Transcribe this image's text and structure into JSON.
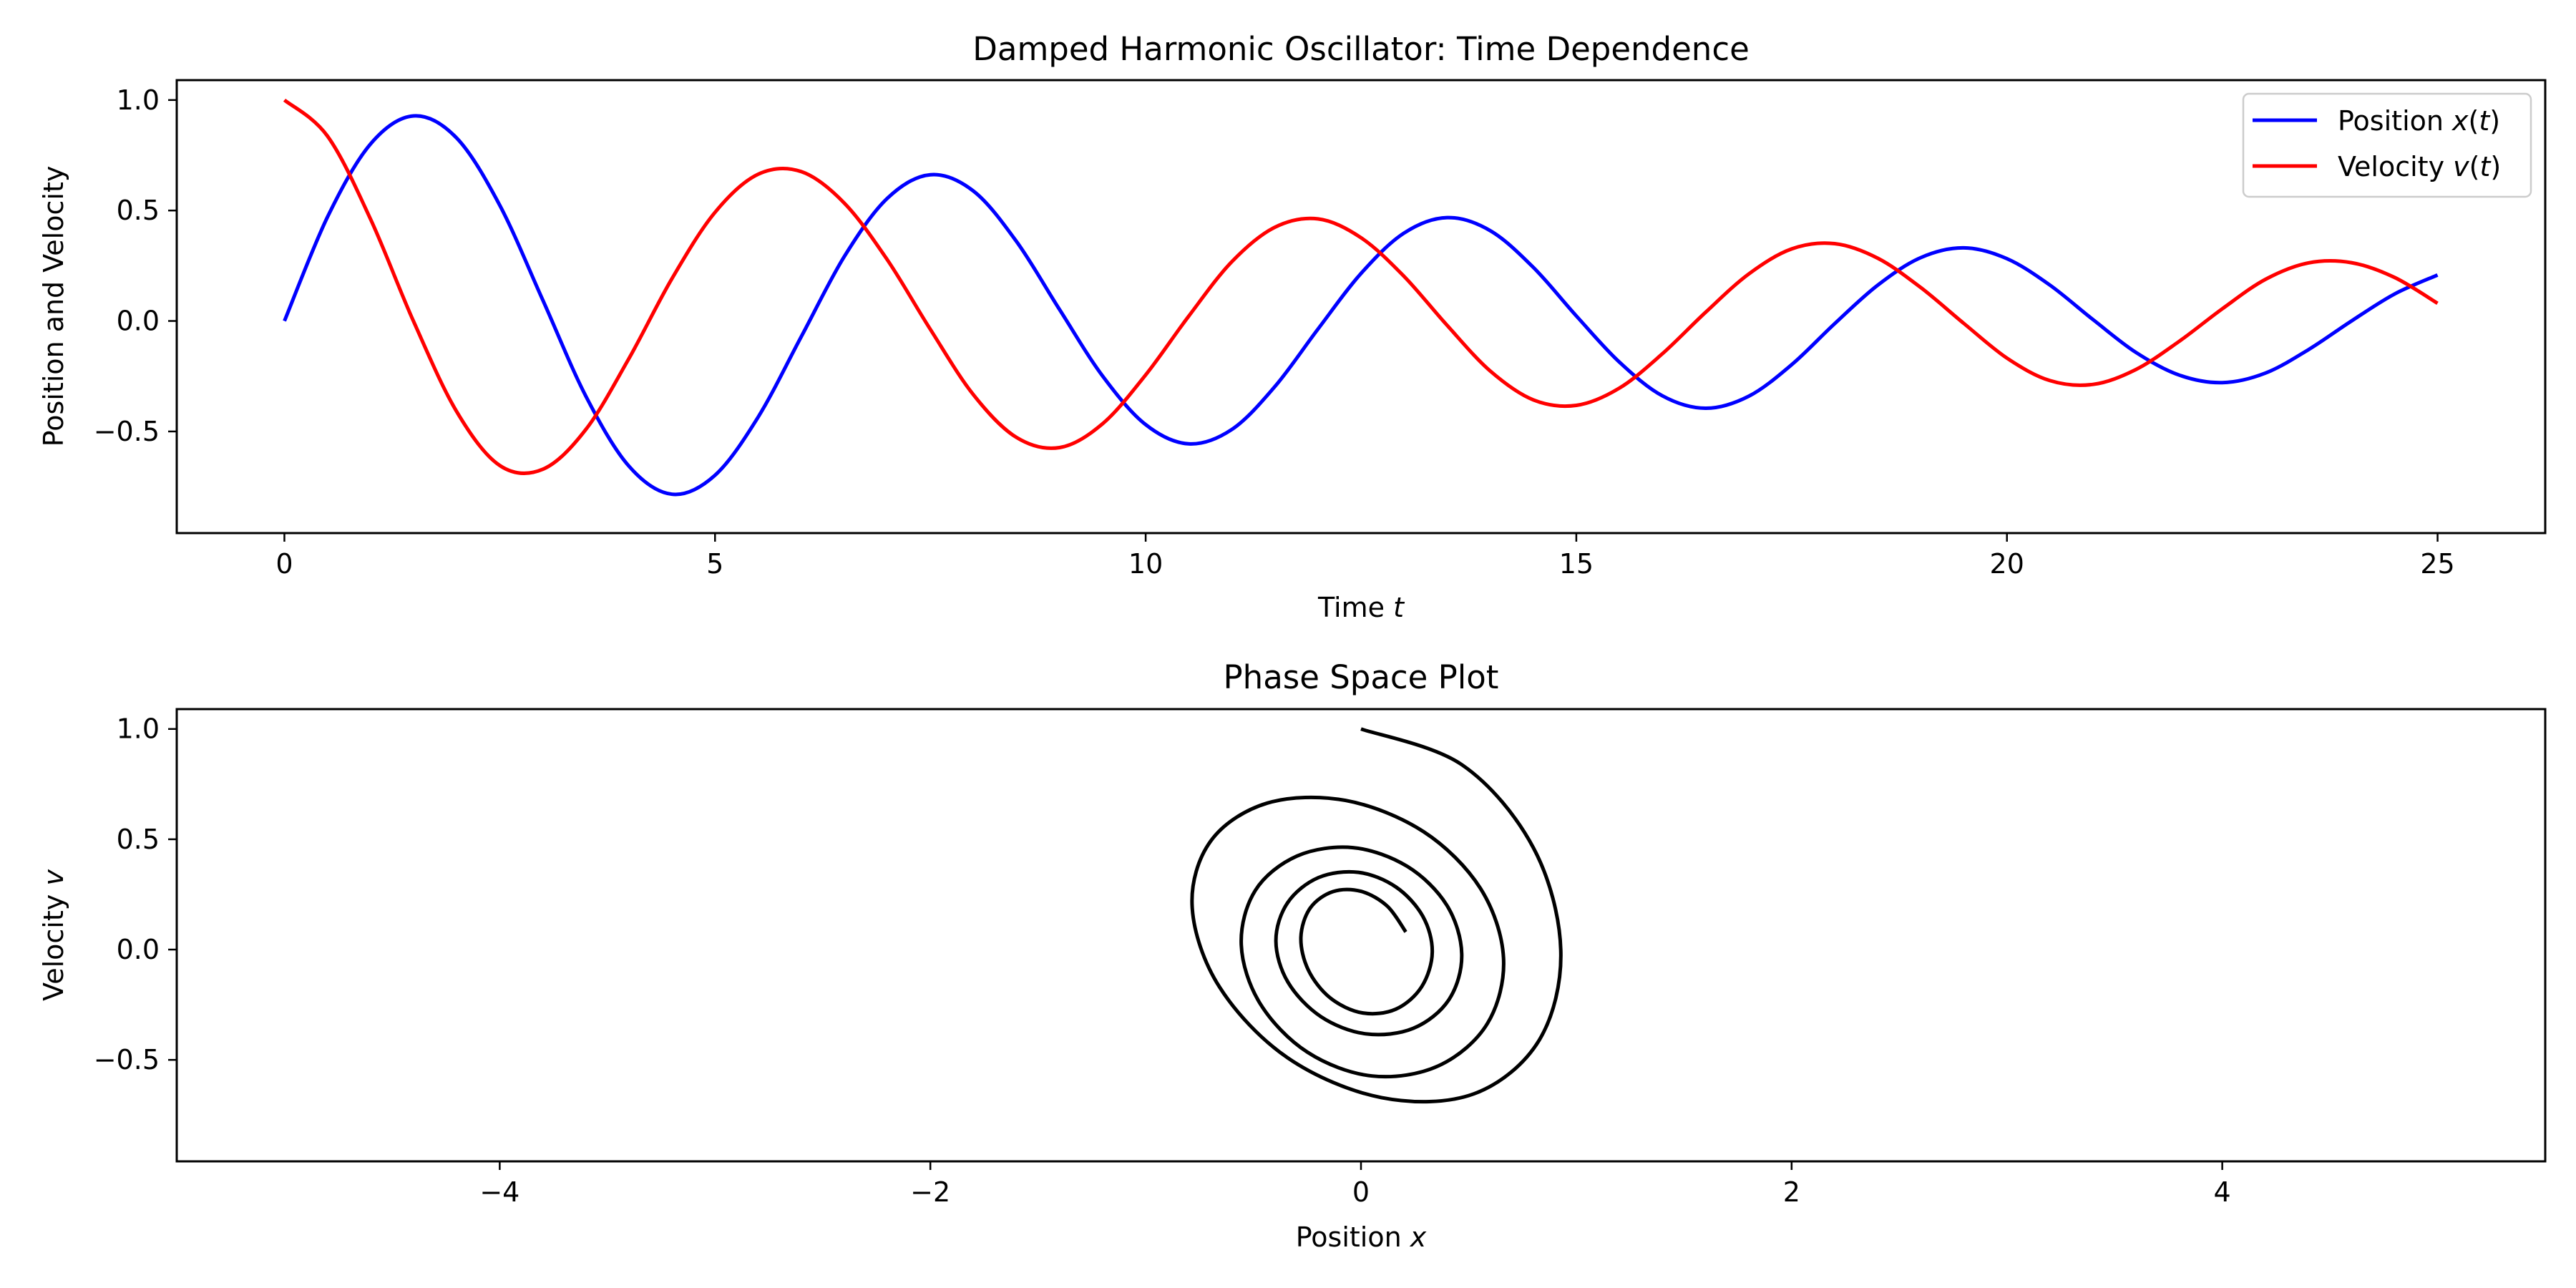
{
  "chart_data": [
    {
      "type": "line",
      "title": "Damped Harmonic Oscillator: Time Dependence",
      "xlabel_parts": [
        "Time ",
        "t",
        ""
      ],
      "ylabel": "Position and Velocity",
      "xlim": [
        -1.25,
        26.25
      ],
      "ylim": [
        -0.96,
        1.09
      ],
      "xticks": [
        0,
        5,
        10,
        15,
        20,
        25
      ],
      "xtick_labels": [
        "0",
        "5",
        "10",
        "15",
        "20",
        "25"
      ],
      "yticks": [
        -0.5,
        0.0,
        0.5,
        1.0
      ],
      "ytick_labels": [
        "−0.5",
        "0.0",
        "0.5",
        "1.0"
      ],
      "legend_position": "top-right",
      "grid": false,
      "series": [
        {
          "name_parts": [
            "Position ",
            "x",
            "(",
            "t",
            ")"
          ],
          "color": "#0000ff",
          "x": [
            0,
            0.5,
            1,
            1.5,
            2,
            2.5,
            3,
            3.5,
            4,
            4.5,
            5,
            5.5,
            6,
            6.5,
            7,
            7.5,
            8,
            8.5,
            9,
            9.5,
            10,
            10.5,
            11,
            11.5,
            12,
            12.5,
            13,
            13.5,
            14,
            14.5,
            15,
            15.5,
            16,
            16.5,
            17,
            17.5,
            18,
            18.5,
            19,
            19.5,
            20,
            20.5,
            21,
            21.5,
            22,
            22.5,
            23,
            23.5,
            24,
            24.5,
            25
          ],
          "y": [
            0.0,
            0.47,
            0.801,
            0.928,
            0.828,
            0.524,
            0.095,
            -0.34,
            -0.657,
            -0.784,
            -0.698,
            -0.435,
            -0.072,
            0.291,
            0.555,
            0.662,
            0.588,
            0.36,
            0.052,
            -0.249,
            -0.469,
            -0.556,
            -0.491,
            -0.297,
            -0.037,
            0.215,
            0.398,
            0.468,
            0.409,
            0.243,
            0.023,
            -0.186,
            -0.339,
            -0.395,
            -0.341,
            -0.198,
            -0.012,
            0.162,
            0.287,
            0.331,
            0.282,
            0.162,
            0.006,
            -0.143,
            -0.245,
            -0.279,
            -0.236,
            -0.13,
            0.0,
            0.122,
            0.208
          ]
        },
        {
          "name_parts": [
            "Velocity ",
            "v",
            "(",
            "t",
            ")"
          ],
          "color": "#ff0000",
          "x": [
            0,
            0.5,
            1,
            1.5,
            2,
            2.5,
            3,
            3.5,
            4,
            4.5,
            5,
            5.5,
            6,
            6.5,
            7,
            7.5,
            8,
            8.5,
            9,
            9.5,
            10,
            10.5,
            11,
            11.5,
            12,
            12.5,
            13,
            13.5,
            14,
            14.5,
            15,
            15.5,
            16,
            16.5,
            17,
            17.5,
            18,
            18.5,
            19,
            19.5,
            20,
            20.5,
            21,
            21.5,
            22,
            22.5,
            23,
            23.5,
            24,
            24.5,
            25
          ],
          "y": [
            1.0,
            0.837,
            0.461,
            -0.002,
            -0.41,
            -0.654,
            -0.671,
            -0.491,
            -0.17,
            0.192,
            0.492,
            0.664,
            0.676,
            0.534,
            0.277,
            -0.038,
            -0.334,
            -0.527,
            -0.573,
            -0.465,
            -0.244,
            0.022,
            0.268,
            0.424,
            0.462,
            0.377,
            0.202,
            -0.02,
            -0.226,
            -0.357,
            -0.382,
            -0.304,
            -0.148,
            0.039,
            0.212,
            0.326,
            0.35,
            0.284,
            0.151,
            -0.011,
            -0.168,
            -0.27,
            -0.287,
            -0.219,
            -0.092,
            0.055,
            0.188,
            0.263,
            0.264,
            0.197,
            0.08
          ]
        }
      ]
    },
    {
      "type": "line",
      "title": "Phase Space Plot",
      "xlabel_parts": [
        "Position ",
        "x",
        ""
      ],
      "ylabel_parts": [
        "Velocity ",
        "v",
        ""
      ],
      "xlim": [
        -5.5,
        5.5
      ],
      "ylim": [
        -0.96,
        1.09
      ],
      "xticks": [
        -4,
        -2,
        0,
        2,
        4
      ],
      "xtick_labels": [
        "−4",
        "−2",
        "0",
        "2",
        "4"
      ],
      "yticks": [
        -0.5,
        0.0,
        0.5,
        1.0
      ],
      "ytick_labels": [
        "−0.5",
        "0.0",
        "0.5",
        "1.0"
      ],
      "grid": false,
      "series": [
        {
          "color": "#000000",
          "x": [
            0.0,
            0.47,
            0.801,
            0.928,
            0.828,
            0.524,
            0.095,
            -0.34,
            -0.657,
            -0.784,
            -0.698,
            -0.435,
            -0.072,
            0.291,
            0.555,
            0.662,
            0.588,
            0.36,
            0.052,
            -0.249,
            -0.469,
            -0.556,
            -0.491,
            -0.297,
            -0.037,
            0.215,
            0.398,
            0.468,
            0.409,
            0.243,
            0.023,
            -0.186,
            -0.339,
            -0.395,
            -0.341,
            -0.198,
            -0.012,
            0.162,
            0.287,
            0.331,
            0.282,
            0.162,
            0.006,
            -0.143,
            -0.245,
            -0.279,
            -0.236,
            -0.13,
            0.0,
            0.122,
            0.208
          ],
          "y": [
            1.0,
            0.837,
            0.461,
            -0.002,
            -0.41,
            -0.654,
            -0.671,
            -0.491,
            -0.17,
            0.192,
            0.492,
            0.664,
            0.676,
            0.534,
            0.277,
            -0.038,
            -0.334,
            -0.527,
            -0.573,
            -0.465,
            -0.244,
            0.022,
            0.268,
            0.424,
            0.462,
            0.377,
            0.202,
            -0.02,
            -0.226,
            -0.357,
            -0.382,
            -0.304,
            -0.148,
            0.039,
            0.212,
            0.326,
            0.35,
            0.284,
            0.151,
            -0.011,
            -0.168,
            -0.27,
            -0.287,
            -0.219,
            -0.092,
            0.055,
            0.188,
            0.263,
            0.264,
            0.197,
            0.08
          ]
        }
      ]
    }
  ]
}
